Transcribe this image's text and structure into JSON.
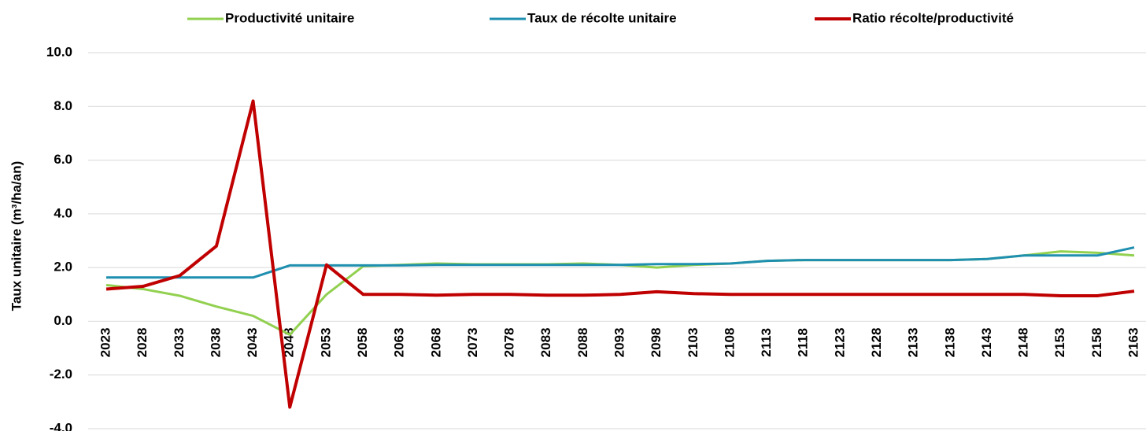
{
  "chart_data": {
    "type": "line",
    "ylabel": "Taux unitaire (m³/ha/an)",
    "categories": [
      "2023",
      "2028",
      "2033",
      "2038",
      "2043",
      "2048",
      "2053",
      "2058",
      "2063",
      "2068",
      "2073",
      "2078",
      "2083",
      "2088",
      "2093",
      "2098",
      "2103",
      "2108",
      "2113",
      "2118",
      "2123",
      "2128",
      "2133",
      "2138",
      "2143",
      "2148",
      "2153",
      "2158",
      "2163"
    ],
    "series": [
      {
        "name": "Productivité unitaire",
        "color": "#92d050",
        "values": [
          1.35,
          1.2,
          0.95,
          0.55,
          0.2,
          -0.5,
          1.0,
          2.05,
          2.1,
          2.15,
          2.12,
          2.12,
          2.12,
          2.15,
          2.1,
          2.0,
          2.1,
          2.15,
          2.25,
          2.28,
          2.28,
          2.28,
          2.28,
          2.28,
          2.32,
          2.45,
          2.6,
          2.55,
          2.45
        ]
      },
      {
        "name": "Taux de récolte unitaire",
        "color": "#1f8fb0",
        "values": [
          1.63,
          1.63,
          1.63,
          1.63,
          1.63,
          2.08,
          2.08,
          2.08,
          2.08,
          2.1,
          2.1,
          2.1,
          2.1,
          2.1,
          2.1,
          2.13,
          2.13,
          2.15,
          2.25,
          2.28,
          2.28,
          2.28,
          2.28,
          2.28,
          2.32,
          2.45,
          2.45,
          2.45,
          2.75
        ]
      },
      {
        "name": "Ratio récolte/productivité",
        "color": "#c00000",
        "values": [
          1.2,
          1.3,
          1.7,
          2.8,
          8.2,
          -3.2,
          2.1,
          1.0,
          1.0,
          0.97,
          1.0,
          1.0,
          0.97,
          0.97,
          1.0,
          1.1,
          1.03,
          1.0,
          1.0,
          1.0,
          1.0,
          1.0,
          1.0,
          1.0,
          1.0,
          1.0,
          0.95,
          0.95,
          1.12
        ]
      }
    ],
    "ylim": [
      -4,
      10
    ],
    "yticks": [
      {
        "value": -4,
        "label": "-4.0"
      },
      {
        "value": -2,
        "label": "-2.0"
      },
      {
        "value": 0,
        "label": "0.0"
      },
      {
        "value": 2,
        "label": "2.0"
      },
      {
        "value": 4,
        "label": "4.0"
      },
      {
        "value": 6,
        "label": "6.0"
      },
      {
        "value": 8,
        "label": "8.0"
      },
      {
        "value": 10,
        "label": "10.0"
      }
    ],
    "grid": true,
    "legend": "top"
  }
}
